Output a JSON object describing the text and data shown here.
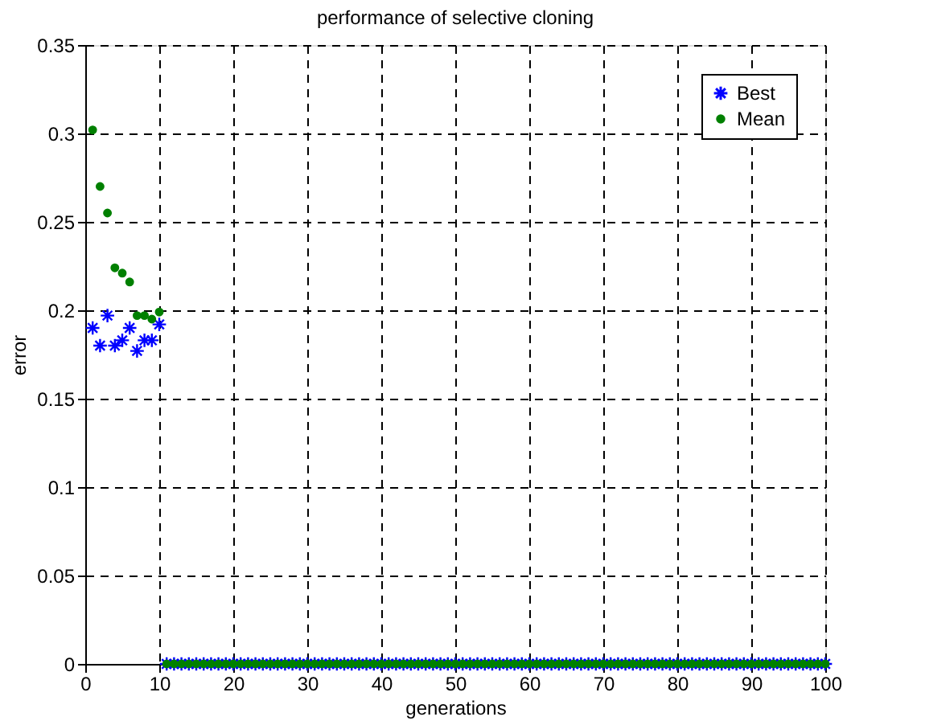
{
  "chart_data": {
    "type": "scatter",
    "title": "performance of selective cloning",
    "xlabel": "generations",
    "ylabel": "error",
    "x": [
      1,
      2,
      3,
      4,
      5,
      6,
      7,
      8,
      9,
      10,
      11,
      12,
      13,
      14,
      15,
      16,
      17,
      18,
      19,
      20,
      21,
      22,
      23,
      24,
      25,
      26,
      27,
      28,
      29,
      30,
      31,
      32,
      33,
      34,
      35,
      36,
      37,
      38,
      39,
      40,
      41,
      42,
      43,
      44,
      45,
      46,
      47,
      48,
      49,
      50,
      51,
      52,
      53,
      54,
      55,
      56,
      57,
      58,
      59,
      60,
      61,
      62,
      63,
      64,
      65,
      66,
      67,
      68,
      69,
      70,
      71,
      72,
      73,
      74,
      75,
      76,
      77,
      78,
      79,
      80,
      81,
      82,
      83,
      84,
      85,
      86,
      87,
      88,
      89,
      90,
      91,
      92,
      93,
      94,
      95,
      96,
      97,
      98,
      99,
      100
    ],
    "series": [
      {
        "name": "Best",
        "color": "#0000ff",
        "marker": "cross",
        "values": [
          0.19,
          0.18,
          0.197,
          0.18,
          0.183,
          0.19,
          0.177,
          0.183,
          0.183,
          0.192,
          0,
          0,
          0,
          0,
          0,
          0,
          0,
          0,
          0,
          0,
          0,
          0,
          0,
          0,
          0,
          0,
          0,
          0,
          0,
          0,
          0,
          0,
          0,
          0,
          0,
          0,
          0,
          0,
          0,
          0,
          0,
          0,
          0,
          0,
          0,
          0,
          0,
          0,
          0,
          0,
          0,
          0,
          0,
          0,
          0,
          0,
          0,
          0,
          0,
          0,
          0,
          0,
          0,
          0,
          0,
          0,
          0,
          0,
          0,
          0,
          0,
          0,
          0,
          0,
          0,
          0,
          0,
          0,
          0,
          0,
          0,
          0,
          0,
          0,
          0,
          0,
          0,
          0,
          0,
          0,
          0,
          0,
          0,
          0,
          0,
          0,
          0,
          0,
          0,
          0
        ]
      },
      {
        "name": "Mean",
        "color": "#008000",
        "marker": "circle",
        "values": [
          0.302,
          0.27,
          0.255,
          0.224,
          0.221,
          0.216,
          0.197,
          0.197,
          0.195,
          0.199,
          0,
          0,
          0,
          0,
          0,
          0,
          0,
          0,
          0,
          0,
          0,
          0,
          0,
          0,
          0,
          0,
          0,
          0,
          0,
          0,
          0,
          0,
          0,
          0,
          0,
          0,
          0,
          0,
          0,
          0,
          0,
          0,
          0,
          0,
          0,
          0,
          0,
          0,
          0,
          0,
          0,
          0,
          0,
          0,
          0,
          0,
          0,
          0,
          0,
          0,
          0,
          0,
          0,
          0,
          0,
          0,
          0,
          0,
          0,
          0,
          0,
          0,
          0,
          0,
          0,
          0,
          0,
          0,
          0,
          0,
          0,
          0,
          0,
          0,
          0,
          0,
          0,
          0,
          0,
          0,
          0,
          0,
          0,
          0,
          0,
          0,
          0,
          0,
          0,
          0
        ]
      }
    ],
    "xlim": [
      0,
      100
    ],
    "xticks": [
      0,
      10,
      20,
      30,
      40,
      50,
      60,
      70,
      80,
      90,
      100
    ],
    "ylim": [
      0,
      0.35
    ],
    "yticks": [
      0,
      0.05,
      0.1,
      0.15,
      0.2,
      0.25,
      0.3,
      0.35
    ],
    "grid": true,
    "line_style": "dashed",
    "legend": "top right"
  }
}
